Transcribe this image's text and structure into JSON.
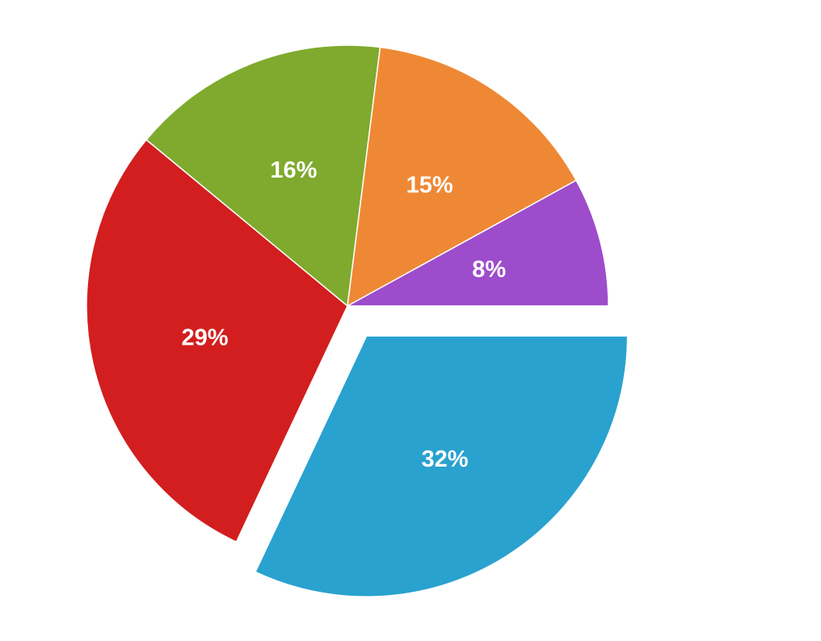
{
  "chart_data": {
    "type": "pie",
    "slices": [
      {
        "value": 32,
        "label": "32%",
        "color": "#29a2cf",
        "exploded": true
      },
      {
        "value": 29,
        "label": "29%",
        "color": "#d21e1e",
        "exploded": false
      },
      {
        "value": 16,
        "label": "16%",
        "color": "#7faa2e",
        "exploded": false
      },
      {
        "value": 15,
        "label": "15%",
        "color": "#ef8834",
        "exploded": false
      },
      {
        "value": 8,
        "label": "8%",
        "color": "#9d4ccc",
        "exploded": false
      }
    ],
    "start_angle": "3 o'clock",
    "direction": "clockwise",
    "legend": "none"
  }
}
